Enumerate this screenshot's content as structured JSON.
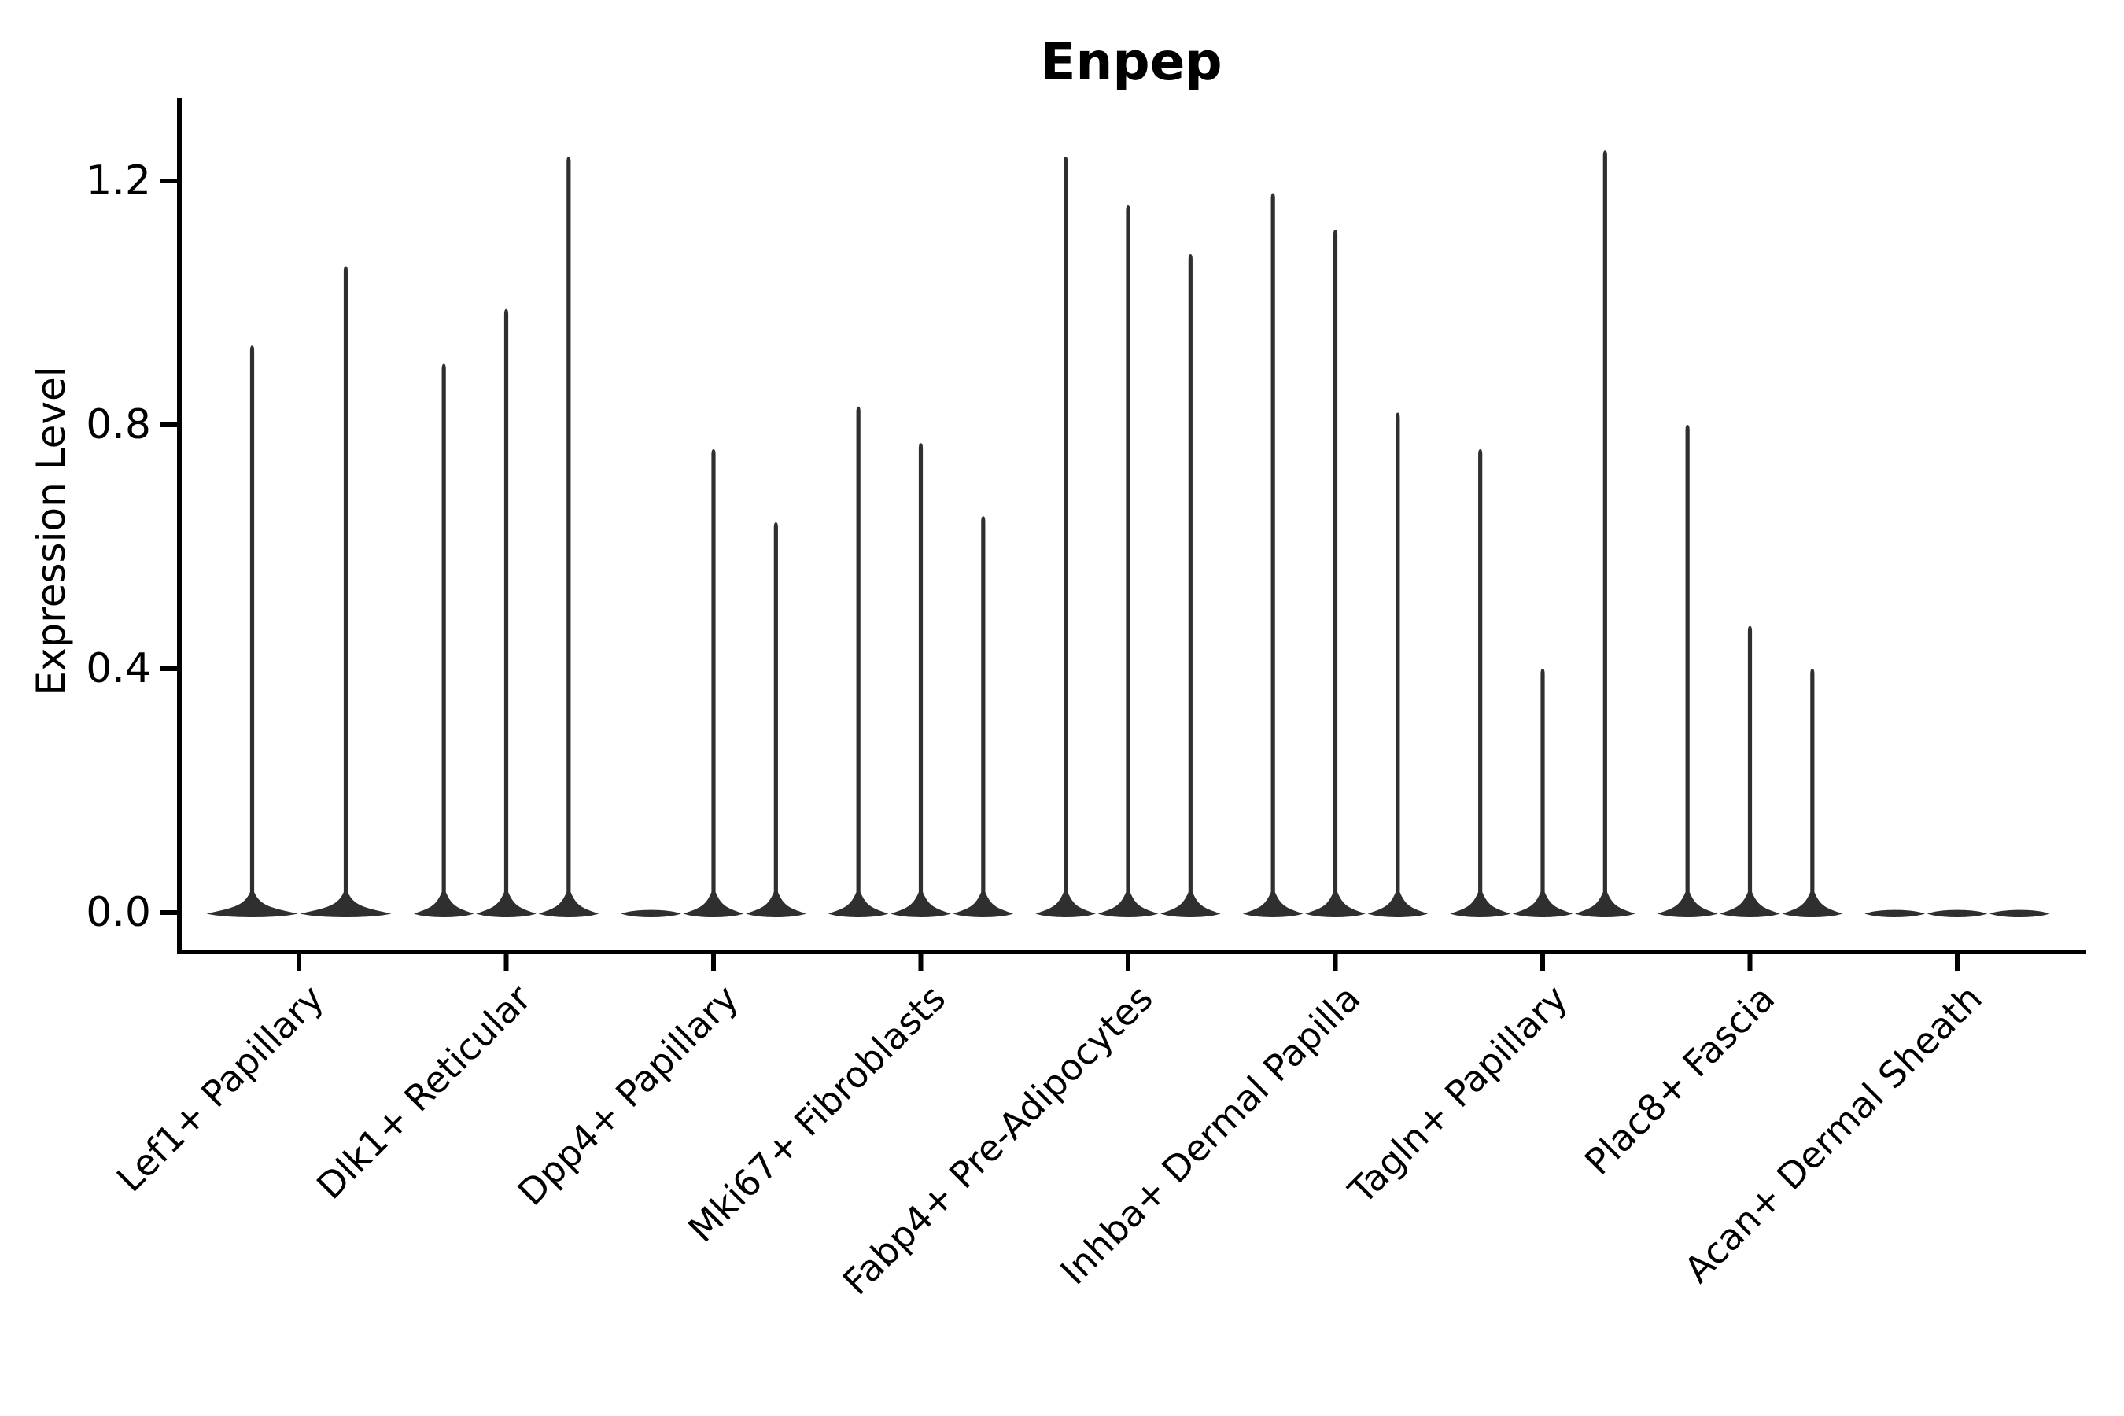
{
  "title": "Enpep",
  "colors": {
    "violin": "#2f2f2f",
    "axis": "#000000",
    "text": "#000000",
    "background": "#ffffff"
  },
  "chart_data": {
    "type": "violin",
    "title": "Enpep",
    "xlabel": "",
    "ylabel": "Expression Level",
    "ylim": [
      -0.06,
      1.33
    ],
    "yticks": [
      0.0,
      0.4,
      0.8,
      1.2
    ],
    "ytick_labels": [
      "0.0",
      "0.4",
      "0.8",
      "1.2"
    ],
    "grid": false,
    "legend": "none",
    "x_tick_rotation_deg": 45,
    "description": "Violin plot of Enpep expression level per fibroblast cluster; each cluster contains 2-3 thin violins (sub-samples). Values below are the peak (max) expression reached by each violin spike; bulk of each distribution sits at 0.",
    "categories": [
      {
        "label": "Lef1+ Papillary",
        "violin_peaks": [
          0.93,
          1.06
        ]
      },
      {
        "label": "Dlk1+ Reticular",
        "violin_peaks": [
          0.9,
          0.99,
          1.24
        ]
      },
      {
        "label": "Dpp4+ Papillary",
        "violin_peaks": [
          0.0,
          0.76,
          0.64
        ]
      },
      {
        "label": "Mki67+ Fibroblasts",
        "violin_peaks": [
          0.83,
          0.77,
          0.65
        ]
      },
      {
        "label": "Fabp4+ Pre-Adipocytes",
        "violin_peaks": [
          1.24,
          1.16,
          1.08
        ]
      },
      {
        "label": "Inhba+ Dermal Papilla",
        "violin_peaks": [
          1.18,
          1.12,
          0.82
        ]
      },
      {
        "label": "Tagln+ Papillary",
        "violin_peaks": [
          0.76,
          0.4,
          1.25
        ]
      },
      {
        "label": "Plac8+ Fascia",
        "violin_peaks": [
          0.8,
          0.47,
          0.4
        ]
      },
      {
        "label": "Acan+ Dermal Sheath",
        "violin_peaks": [
          0.0,
          0.0,
          0.0
        ]
      }
    ]
  }
}
